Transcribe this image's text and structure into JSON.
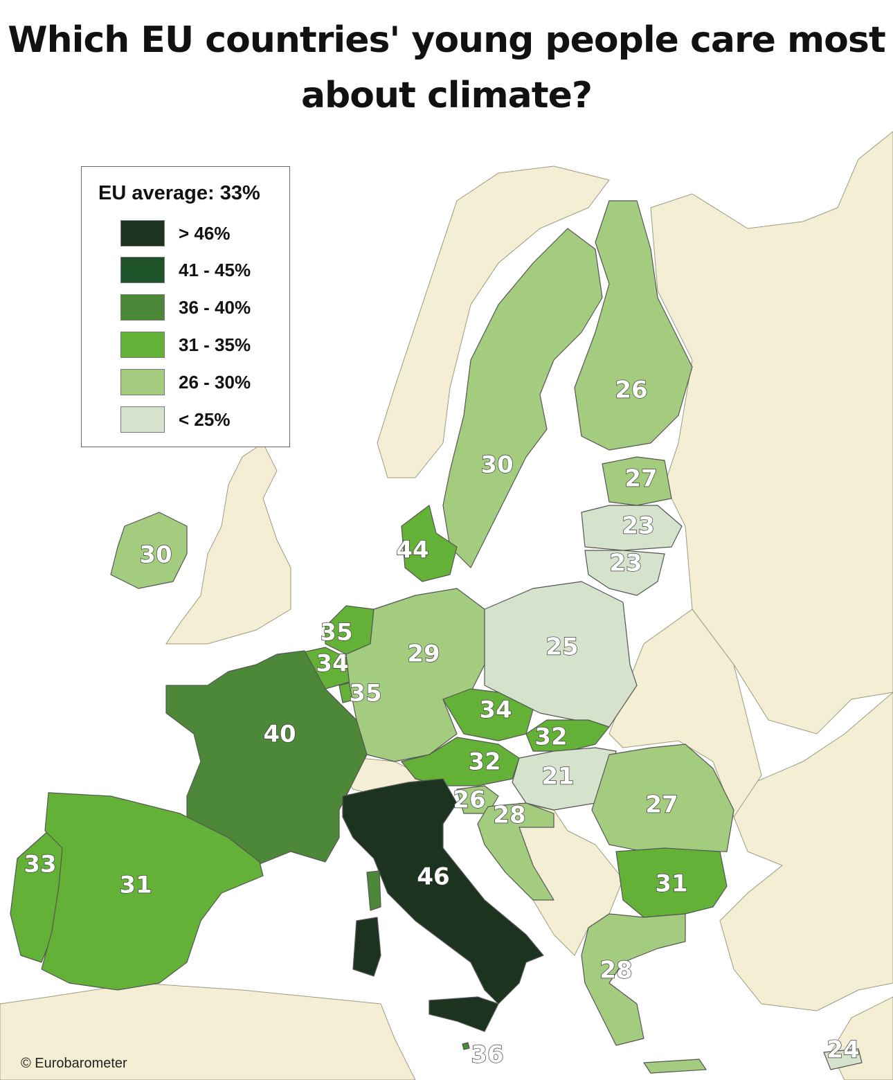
{
  "title": "Which EU countries' young people care most about climate?",
  "legend": {
    "title": "EU average: 33%",
    "bins": [
      {
        "label": "> 46%",
        "color": "#1c3320"
      },
      {
        "label": "41 - 45%",
        "color": "#1e5228"
      },
      {
        "label": "36 - 40%",
        "color": "#4d8838"
      },
      {
        "label": "31 - 35%",
        "color": "#63b136"
      },
      {
        "label": "26 - 30%",
        "color": "#a3cc7e"
      },
      {
        "label": "< 25%",
        "color": "#d5e3cc"
      }
    ]
  },
  "colors": {
    "sea": "#ffffff",
    "non_eu_land": "#f4eed4"
  },
  "credit": "© Eurobarometer",
  "countries": [
    {
      "name": "Finland",
      "value": 26
    },
    {
      "name": "Sweden",
      "value": 30
    },
    {
      "name": "Estonia",
      "value": 27
    },
    {
      "name": "Latvia",
      "value": 23
    },
    {
      "name": "Lithuania",
      "value": 23
    },
    {
      "name": "Ireland",
      "value": 30
    },
    {
      "name": "Denmark",
      "value": 44
    },
    {
      "name": "Netherlands",
      "value": 35
    },
    {
      "name": "Belgium",
      "value": 34
    },
    {
      "name": "Luxembourg",
      "value": 35
    },
    {
      "name": "Germany",
      "value": 29
    },
    {
      "name": "Poland",
      "value": 25
    },
    {
      "name": "Czechia",
      "value": 34
    },
    {
      "name": "Slovakia",
      "value": 32
    },
    {
      "name": "Austria",
      "value": 32
    },
    {
      "name": "Hungary",
      "value": 21
    },
    {
      "name": "Slovenia",
      "value": 26
    },
    {
      "name": "Croatia",
      "value": 28
    },
    {
      "name": "Romania",
      "value": 27
    },
    {
      "name": "France",
      "value": 40
    },
    {
      "name": "Portugal",
      "value": 33
    },
    {
      "name": "Spain",
      "value": 31
    },
    {
      "name": "Italy",
      "value": 46
    },
    {
      "name": "Bulgaria",
      "value": 31
    },
    {
      "name": "Greece",
      "value": 28
    },
    {
      "name": "Malta",
      "value": 36
    },
    {
      "name": "Cyprus",
      "value": 24
    }
  ]
}
